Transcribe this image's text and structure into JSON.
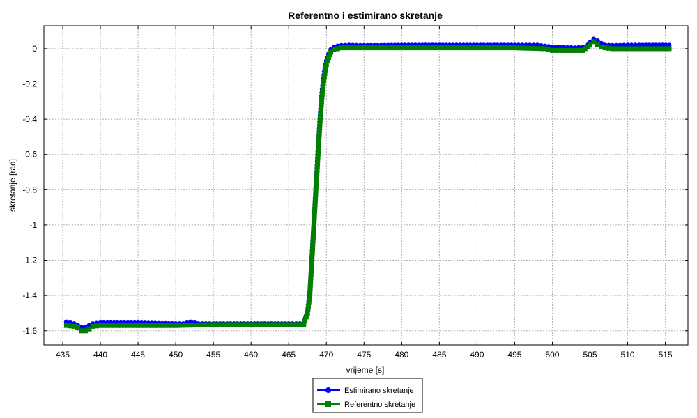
{
  "chart_data": {
    "type": "line",
    "title": "Referentno i estimirano skretanje",
    "xlabel": "vrijeme [s]",
    "ylabel": "skretanje [rad]",
    "xlim": [
      432.5,
      518
    ],
    "ylim": [
      -1.68,
      0.13
    ],
    "xticks": [
      435,
      440,
      445,
      450,
      455,
      460,
      465,
      470,
      475,
      480,
      485,
      490,
      495,
      500,
      505,
      510,
      515
    ],
    "yticks": [
      0,
      -0.2,
      -0.4,
      -0.6,
      -0.8,
      -1,
      -1.2,
      -1.4,
      -1.6
    ],
    "ytick_labels": [
      "0",
      "-0.2",
      "-0.4",
      "-0.6",
      "-0.8",
      "-1",
      "-1.2",
      "-1.4",
      "-1.6"
    ],
    "grid": true,
    "legend_position": "bottom-center",
    "series": [
      {
        "name": "Estimirano skretanje",
        "color": "#0000ff",
        "marker": "circle",
        "x": [
          435.5,
          436.5,
          437,
          437.5,
          438,
          438.5,
          439,
          440,
          445,
          450,
          451,
          452,
          453,
          455,
          460,
          465,
          467,
          467.5,
          467.8,
          468,
          468.2,
          468.4,
          468.6,
          468.8,
          469,
          469.2,
          469.4,
          469.6,
          469.8,
          470,
          470.3,
          470.6,
          471,
          471.5,
          472,
          473,
          475,
          480,
          485,
          490,
          495,
          498,
          499,
          500,
          503,
          504.5,
          505,
          505.5,
          506,
          506.5,
          507,
          508,
          510,
          512,
          515.5
        ],
        "y": [
          -1.55,
          -1.56,
          -1.57,
          -1.58,
          -1.58,
          -1.57,
          -1.56,
          -1.555,
          -1.555,
          -1.56,
          -1.56,
          -1.55,
          -1.56,
          -1.56,
          -1.56,
          -1.56,
          -1.56,
          -1.49,
          -1.38,
          -1.24,
          -1.09,
          -0.94,
          -0.79,
          -0.64,
          -0.49,
          -0.36,
          -0.25,
          -0.17,
          -0.11,
          -0.07,
          -0.03,
          -0.005,
          0.008,
          0.015,
          0.018,
          0.02,
          0.018,
          0.02,
          0.02,
          0.02,
          0.02,
          0.02,
          0.015,
          0.01,
          0.005,
          0.01,
          0.035,
          0.055,
          0.045,
          0.03,
          0.02,
          0.018,
          0.02,
          0.02,
          0.02
        ]
      },
      {
        "name": "Referentno skretanje",
        "color": "#008000",
        "marker": "square",
        "x": [
          435.5,
          436.5,
          437,
          437.5,
          438,
          438.5,
          439,
          440,
          445,
          450,
          455,
          460,
          465,
          467,
          467.5,
          467.8,
          468,
          468.2,
          468.4,
          468.6,
          468.8,
          469,
          469.2,
          469.4,
          469.6,
          469.8,
          470,
          470.3,
          470.6,
          471,
          471.5,
          472,
          473,
          475,
          480,
          485,
          490,
          495,
          499,
          500,
          504,
          505,
          505.5,
          506,
          506.5,
          507,
          508,
          510,
          512,
          515.5
        ],
        "y": [
          -1.57,
          -1.575,
          -1.58,
          -1.6,
          -1.6,
          -1.59,
          -1.575,
          -1.57,
          -1.57,
          -1.57,
          -1.565,
          -1.565,
          -1.565,
          -1.565,
          -1.5,
          -1.4,
          -1.26,
          -1.11,
          -0.96,
          -0.81,
          -0.67,
          -0.52,
          -0.39,
          -0.28,
          -0.2,
          -0.14,
          -0.09,
          -0.05,
          -0.02,
          -0.005,
          0.0,
          0.005,
          0.005,
          0.005,
          0.005,
          0.005,
          0.005,
          0.005,
          0.0,
          -0.01,
          -0.01,
          0.02,
          0.04,
          0.025,
          0.01,
          0.005,
          0.0,
          0.0,
          0.0,
          0.0
        ]
      }
    ]
  }
}
